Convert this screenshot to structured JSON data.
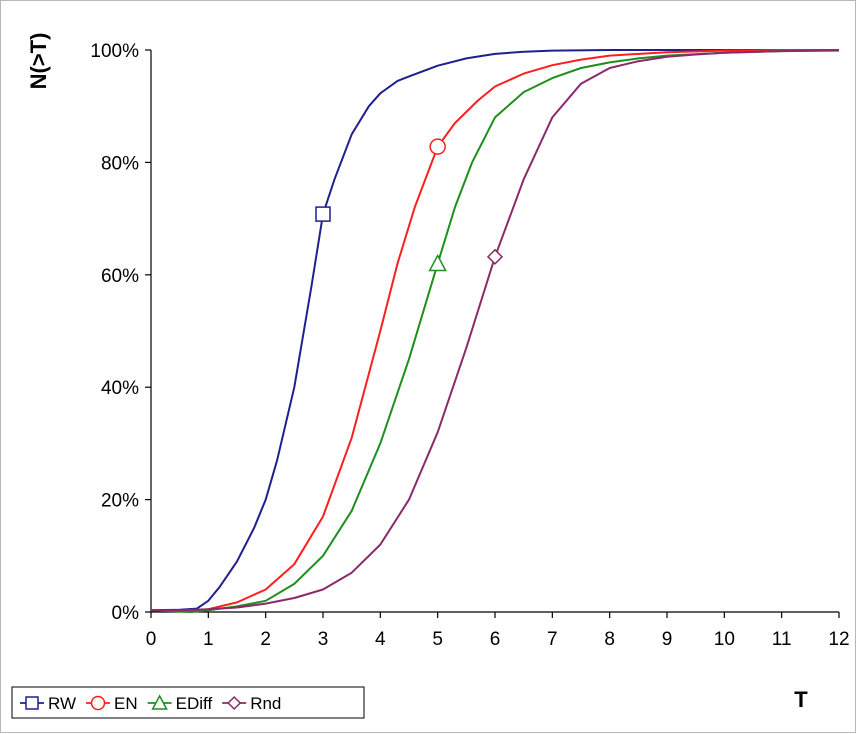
{
  "chart_data": {
    "type": "line",
    "title": "",
    "xlabel": "T",
    "ylabel": "N(>T)",
    "xlim": [
      0,
      12
    ],
    "ylim": [
      0,
      100
    ],
    "x_ticks": [
      "0",
      "1",
      "2",
      "3",
      "4",
      "5",
      "6",
      "7",
      "8",
      "9",
      "10",
      "11",
      "12"
    ],
    "y_ticks": [
      "0%",
      "20%",
      "40%",
      "60%",
      "80%",
      "100%"
    ],
    "grid": false,
    "legend_position": "bottom-left",
    "series": [
      {
        "name": "RW",
        "color": "#1f1f8f",
        "marker": "square",
        "marker_point": [
          3,
          70.8
        ],
        "points": [
          [
            0,
            0.3
          ],
          [
            0.5,
            0.4
          ],
          [
            0.8,
            0.6
          ],
          [
            1,
            2
          ],
          [
            1.2,
            4.5
          ],
          [
            1.5,
            9
          ],
          [
            1.8,
            15
          ],
          [
            2,
            20
          ],
          [
            2.2,
            27
          ],
          [
            2.5,
            40
          ],
          [
            2.8,
            58
          ],
          [
            3,
            70.8
          ],
          [
            3.2,
            77
          ],
          [
            3.5,
            85
          ],
          [
            3.8,
            90
          ],
          [
            4,
            92.3
          ],
          [
            4.3,
            94.5
          ],
          [
            4.5,
            95.3
          ],
          [
            5,
            97.2
          ],
          [
            5.5,
            98.5
          ],
          [
            6,
            99.3
          ],
          [
            6.5,
            99.7
          ],
          [
            7,
            99.9
          ],
          [
            8,
            100
          ],
          [
            9,
            100
          ],
          [
            10,
            100
          ],
          [
            11,
            100
          ],
          [
            12,
            100
          ]
        ]
      },
      {
        "name": "EN",
        "color": "#ff1e1e",
        "marker": "circle",
        "marker_point": [
          5,
          82.8
        ],
        "points": [
          [
            0,
            0.3
          ],
          [
            0.7,
            0.1
          ],
          [
            1,
            0.5
          ],
          [
            1.5,
            1.7
          ],
          [
            2,
            4
          ],
          [
            2.5,
            8.5
          ],
          [
            3,
            17
          ],
          [
            3.5,
            31
          ],
          [
            4,
            50
          ],
          [
            4.3,
            62
          ],
          [
            4.6,
            72
          ],
          [
            5,
            82.8
          ],
          [
            5.3,
            87
          ],
          [
            5.7,
            91
          ],
          [
            6,
            93.5
          ],
          [
            6.5,
            95.8
          ],
          [
            7,
            97.3
          ],
          [
            7.5,
            98.3
          ],
          [
            8,
            99
          ],
          [
            9,
            99.6
          ],
          [
            10,
            99.9
          ],
          [
            11,
            100
          ],
          [
            12,
            100
          ]
        ]
      },
      {
        "name": "EDiff",
        "color": "#1d8f1d",
        "marker": "triangle",
        "marker_point": [
          5,
          62
        ],
        "points": [
          [
            0,
            0.3
          ],
          [
            0.7,
            0
          ],
          [
            1,
            0.3
          ],
          [
            1.5,
            1
          ],
          [
            2,
            2
          ],
          [
            2.5,
            5
          ],
          [
            3,
            10
          ],
          [
            3.5,
            18
          ],
          [
            4,
            30
          ],
          [
            4.5,
            45
          ],
          [
            5,
            62
          ],
          [
            5.3,
            72
          ],
          [
            5.6,
            80
          ],
          [
            6,
            88
          ],
          [
            6.5,
            92.5
          ],
          [
            7,
            95
          ],
          [
            7.5,
            96.8
          ],
          [
            8,
            97.8
          ],
          [
            8.5,
            98.5
          ],
          [
            9,
            99
          ],
          [
            10,
            99.5
          ],
          [
            11,
            99.8
          ],
          [
            12,
            99.9
          ]
        ]
      },
      {
        "name": "Rnd",
        "color": "#8b2a6b",
        "marker": "diamond",
        "marker_point": [
          6,
          63.2
        ],
        "points": [
          [
            0,
            0.3
          ],
          [
            0.5,
            0.3
          ],
          [
            1,
            0.5
          ],
          [
            1.5,
            0.8
          ],
          [
            2,
            1.5
          ],
          [
            2.5,
            2.5
          ],
          [
            3,
            4
          ],
          [
            3.5,
            7
          ],
          [
            4,
            12
          ],
          [
            4.5,
            20
          ],
          [
            5,
            32
          ],
          [
            5.5,
            47
          ],
          [
            6,
            63.2
          ],
          [
            6.5,
            77
          ],
          [
            7,
            88
          ],
          [
            7.5,
            94
          ],
          [
            8,
            96.8
          ],
          [
            8.5,
            98
          ],
          [
            9,
            98.8
          ],
          [
            9.5,
            99.2
          ],
          [
            10,
            99.5
          ],
          [
            11,
            99.8
          ],
          [
            12,
            100
          ]
        ]
      }
    ]
  }
}
